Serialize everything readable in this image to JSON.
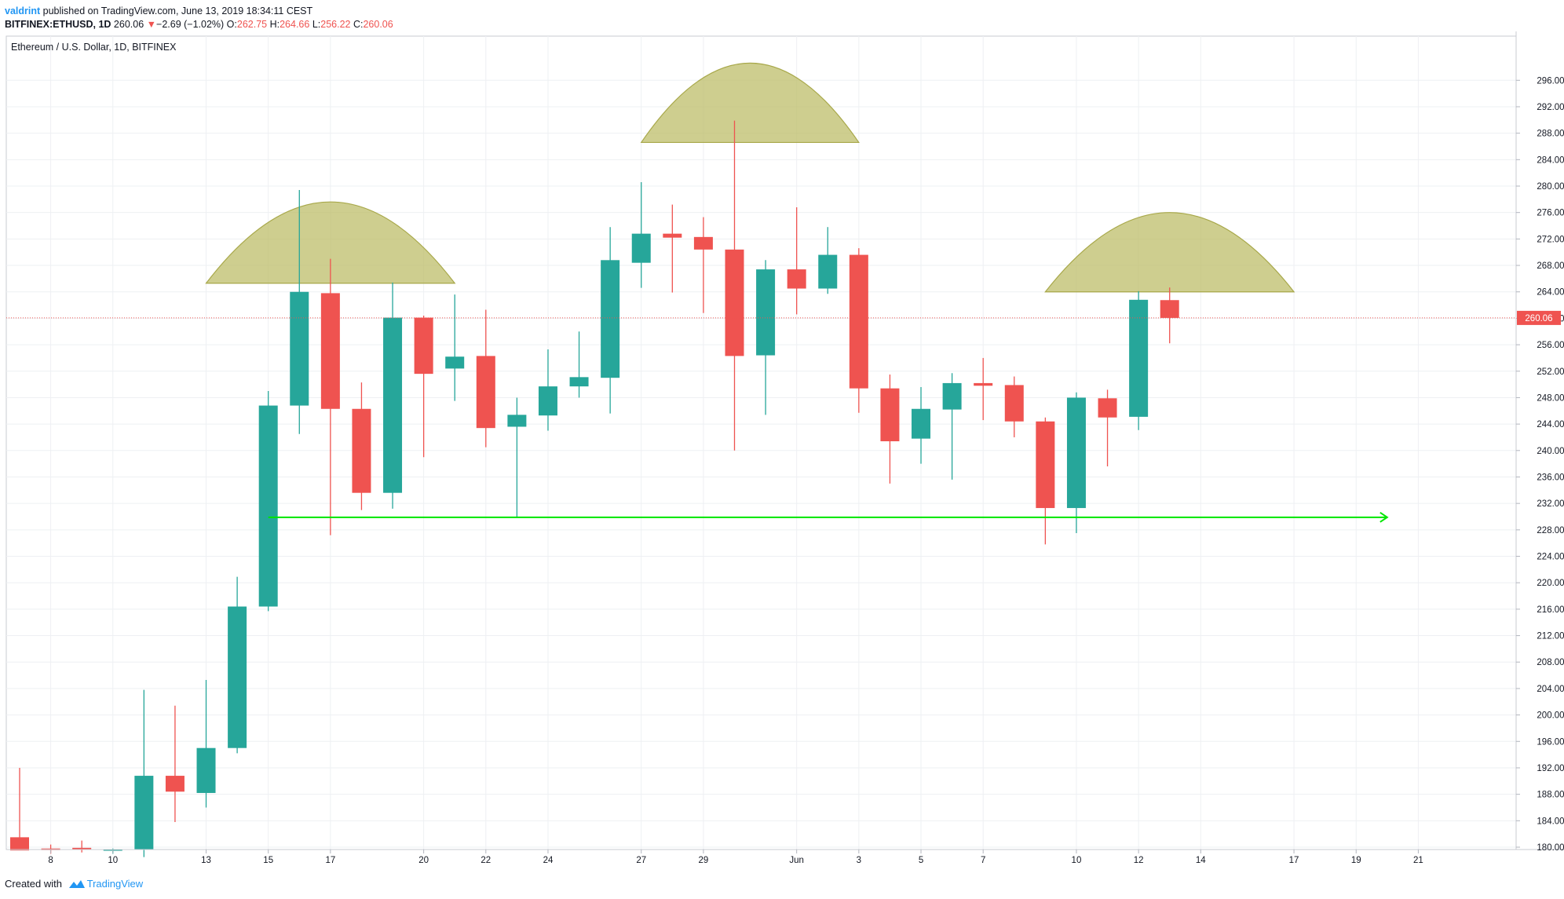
{
  "header": {
    "author": "valdrint",
    "published": "published on TradingView.com, June 13, 2019 18:34:11 CEST",
    "symbol": "BITFINEX:ETHUSD, 1D",
    "price": "260.06",
    "change_arrow": "▼",
    "change": "−2.69 (−1.02%)",
    "open_label": "O:",
    "open": "262.75",
    "high_label": "H:",
    "high": "264.66",
    "low_label": "L:",
    "low": "256.22",
    "close_label": "C:",
    "close": "260.06"
  },
  "chart_title": "Ethereum / U.S. Dollar, 1D, BITFINEX",
  "footer": {
    "created_with": "Created with",
    "brand": "TradingView",
    "logo_icon": "tradingview-logo-icon"
  },
  "colors": {
    "up": "#26a69a",
    "down": "#ef5350",
    "shape": "#bdbd6a",
    "support": "#00e600",
    "last_price": "#ef5350"
  },
  "chart_data": {
    "type": "candlestick",
    "title": "Ethereum / U.S. Dollar, 1D, BITFINEX",
    "ylim": [
      180,
      298
    ],
    "xlim": [
      "2019-05-07",
      "2019-06-22"
    ],
    "grid": true,
    "y_ticks": [
      180,
      184,
      188,
      192,
      196,
      200,
      204,
      208,
      212,
      216,
      220,
      224,
      228,
      232,
      236,
      240,
      244,
      248,
      252,
      256,
      260,
      264,
      268,
      272,
      276,
      280,
      284,
      288,
      292,
      296
    ],
    "x_ticks": [
      {
        "date": "2019-05-08",
        "label": "8"
      },
      {
        "date": "2019-05-10",
        "label": "10"
      },
      {
        "date": "2019-05-13",
        "label": "13"
      },
      {
        "date": "2019-05-15",
        "label": "15"
      },
      {
        "date": "2019-05-17",
        "label": "17"
      },
      {
        "date": "2019-05-20",
        "label": "20"
      },
      {
        "date": "2019-05-22",
        "label": "22"
      },
      {
        "date": "2019-05-24",
        "label": "24"
      },
      {
        "date": "2019-05-27",
        "label": "27"
      },
      {
        "date": "2019-05-29",
        "label": "29"
      },
      {
        "date": "2019-06-01",
        "label": "Jun"
      },
      {
        "date": "2019-06-03",
        "label": "3"
      },
      {
        "date": "2019-06-05",
        "label": "5"
      },
      {
        "date": "2019-06-07",
        "label": "7"
      },
      {
        "date": "2019-06-10",
        "label": "10"
      },
      {
        "date": "2019-06-12",
        "label": "12"
      },
      {
        "date": "2019-06-14",
        "label": "14"
      },
      {
        "date": "2019-06-17",
        "label": "17"
      },
      {
        "date": "2019-06-19",
        "label": "19"
      },
      {
        "date": "2019-06-21",
        "label": "21"
      }
    ],
    "candles": [
      {
        "date": "2019-05-07",
        "open": 181.5,
        "high": 192.0,
        "low": 180.0,
        "close": 179.5
      },
      {
        "date": "2019-05-08",
        "open": 179.8,
        "high": 180.4,
        "low": 179.0,
        "close": 179.6
      },
      {
        "date": "2019-05-09",
        "open": 179.9,
        "high": 181.0,
        "low": 179.2,
        "close": 179.8
      },
      {
        "date": "2019-05-10",
        "open": 179.5,
        "high": 179.8,
        "low": 179.0,
        "close": 179.7
      },
      {
        "date": "2019-05-11",
        "open": 179.6,
        "high": 203.8,
        "low": 178.5,
        "close": 190.8
      },
      {
        "date": "2019-05-12",
        "open": 190.8,
        "high": 201.4,
        "low": 183.8,
        "close": 188.4
      },
      {
        "date": "2019-05-13",
        "open": 188.2,
        "high": 205.3,
        "low": 186.0,
        "close": 195.0
      },
      {
        "date": "2019-05-14",
        "open": 195.0,
        "high": 220.9,
        "low": 194.2,
        "close": 216.4
      },
      {
        "date": "2019-05-15",
        "open": 216.4,
        "high": 249.0,
        "low": 215.7,
        "close": 246.8
      },
      {
        "date": "2019-05-16",
        "open": 246.8,
        "high": 279.4,
        "low": 242.5,
        "close": 264.0
      },
      {
        "date": "2019-05-17",
        "open": 263.8,
        "high": 269.0,
        "low": 227.2,
        "close": 246.3
      },
      {
        "date": "2019-05-18",
        "open": 246.3,
        "high": 250.3,
        "low": 231.0,
        "close": 233.6
      },
      {
        "date": "2019-05-19",
        "open": 233.6,
        "high": 265.4,
        "low": 231.2,
        "close": 260.1
      },
      {
        "date": "2019-05-20",
        "open": 260.1,
        "high": 260.4,
        "low": 239.0,
        "close": 251.6
      },
      {
        "date": "2019-05-21",
        "open": 252.4,
        "high": 263.6,
        "low": 247.5,
        "close": 254.2
      },
      {
        "date": "2019-05-22",
        "open": 254.3,
        "high": 261.3,
        "low": 240.5,
        "close": 243.4
      },
      {
        "date": "2019-05-23",
        "open": 243.6,
        "high": 248.0,
        "low": 229.8,
        "close": 245.4
      },
      {
        "date": "2019-05-24",
        "open": 245.3,
        "high": 255.3,
        "low": 243.0,
        "close": 249.7
      },
      {
        "date": "2019-05-25",
        "open": 249.7,
        "high": 258.0,
        "low": 248.0,
        "close": 251.1
      },
      {
        "date": "2019-05-26",
        "open": 251.0,
        "high": 273.8,
        "low": 245.6,
        "close": 268.8
      },
      {
        "date": "2019-05-27",
        "open": 268.4,
        "high": 280.6,
        "low": 264.6,
        "close": 272.8
      },
      {
        "date": "2019-05-28",
        "open": 272.8,
        "high": 277.2,
        "low": 263.9,
        "close": 272.2
      },
      {
        "date": "2019-05-29",
        "open": 272.3,
        "high": 275.3,
        "low": 260.8,
        "close": 270.4
      },
      {
        "date": "2019-05-30",
        "open": 270.4,
        "high": 289.9,
        "low": 240.0,
        "close": 254.3
      },
      {
        "date": "2019-05-31",
        "open": 254.4,
        "high": 268.8,
        "low": 245.4,
        "close": 267.4
      },
      {
        "date": "2019-06-01",
        "open": 267.4,
        "high": 276.8,
        "low": 260.6,
        "close": 264.5
      },
      {
        "date": "2019-06-02",
        "open": 264.5,
        "high": 273.8,
        "low": 263.7,
        "close": 269.6
      },
      {
        "date": "2019-06-03",
        "open": 269.6,
        "high": 270.6,
        "low": 245.7,
        "close": 249.4
      },
      {
        "date": "2019-06-04",
        "open": 249.4,
        "high": 251.5,
        "low": 235.0,
        "close": 241.4
      },
      {
        "date": "2019-06-05",
        "open": 241.8,
        "high": 249.6,
        "low": 238.0,
        "close": 246.3
      },
      {
        "date": "2019-06-06",
        "open": 246.2,
        "high": 251.7,
        "low": 235.6,
        "close": 250.2
      },
      {
        "date": "2019-06-07",
        "open": 250.2,
        "high": 254.0,
        "low": 244.6,
        "close": 249.8
      },
      {
        "date": "2019-06-08",
        "open": 249.9,
        "high": 251.2,
        "low": 242.0,
        "close": 244.4
      },
      {
        "date": "2019-06-09",
        "open": 244.4,
        "high": 245.0,
        "low": 225.8,
        "close": 231.3
      },
      {
        "date": "2019-06-10",
        "open": 231.3,
        "high": 248.8,
        "low": 227.5,
        "close": 248.0
      },
      {
        "date": "2019-06-11",
        "open": 247.9,
        "high": 249.2,
        "low": 237.6,
        "close": 245.0
      },
      {
        "date": "2019-06-12",
        "open": 245.1,
        "high": 264.1,
        "low": 243.1,
        "close": 262.8
      },
      {
        "date": "2019-06-13",
        "open": 262.75,
        "high": 264.66,
        "low": 256.22,
        "close": 260.06
      }
    ],
    "last_price": 260.06,
    "annotations": [
      {
        "type": "arc",
        "label": "left-shoulder",
        "x1": "2019-05-13",
        "x2": "2019-05-21",
        "base": 265.3,
        "peak": 277.6
      },
      {
        "type": "arc",
        "label": "head",
        "x1": "2019-05-27",
        "x2": "2019-06-03",
        "base": 286.6,
        "peak": 298.6
      },
      {
        "type": "arc",
        "label": "right-shoulder",
        "x1": "2019-06-09",
        "x2": "2019-06-17",
        "base": 264.0,
        "peak": 276.0
      },
      {
        "type": "arrow",
        "label": "support-line",
        "x1": "2019-05-15",
        "x2": "2019-06-20",
        "y": 229.9
      }
    ]
  }
}
